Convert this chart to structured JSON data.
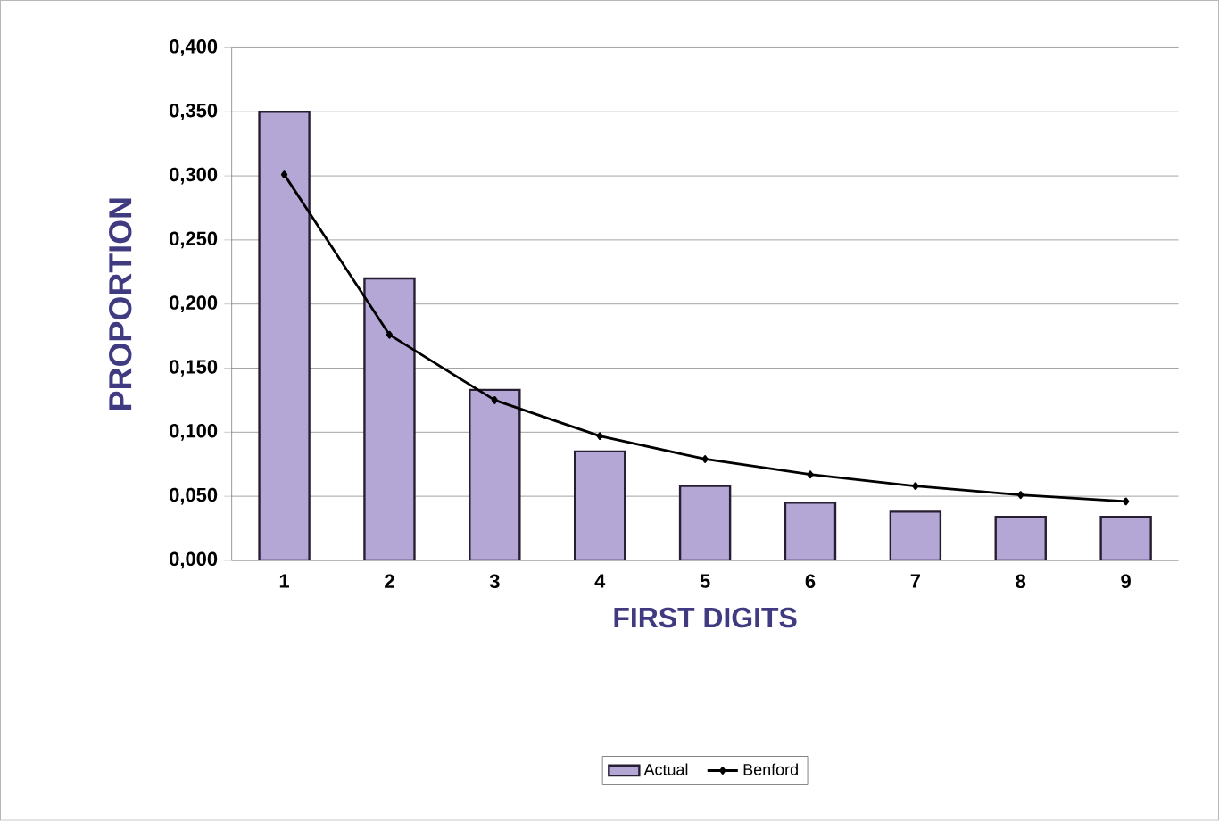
{
  "chart_data": {
    "type": "bar",
    "xlabel": "FIRST DIGITS",
    "ylabel": "PROPORTION",
    "categories": [
      "1",
      "2",
      "3",
      "4",
      "5",
      "6",
      "7",
      "8",
      "9"
    ],
    "series": [
      {
        "name": "Actual",
        "color": "#b4a7d6",
        "values": [
          0.35,
          0.22,
          0.133,
          0.085,
          0.058,
          0.045,
          0.038,
          0.034,
          0.034
        ]
      },
      {
        "name": "Benford",
        "type": "line",
        "color": "#000000",
        "marker": "diamond",
        "values": [
          0.301,
          0.176,
          0.125,
          0.097,
          0.079,
          0.067,
          0.058,
          0.051,
          0.046
        ]
      }
    ],
    "ylim": [
      0,
      0.4
    ],
    "yticks": [
      {
        "value": 0,
        "label": "0,000"
      },
      {
        "value": 0.05,
        "label": "0,050"
      },
      {
        "value": 0.1,
        "label": "0,100"
      },
      {
        "value": 0.15,
        "label": "0,150"
      },
      {
        "value": 0.2,
        "label": "0,200"
      },
      {
        "value": 0.25,
        "label": "0,250"
      },
      {
        "value": 0.3,
        "label": "0,300"
      },
      {
        "value": 0.35,
        "label": "0,350"
      },
      {
        "value": 0.4,
        "label": "0,400"
      }
    ],
    "grid": "y",
    "legend": "bottom"
  }
}
